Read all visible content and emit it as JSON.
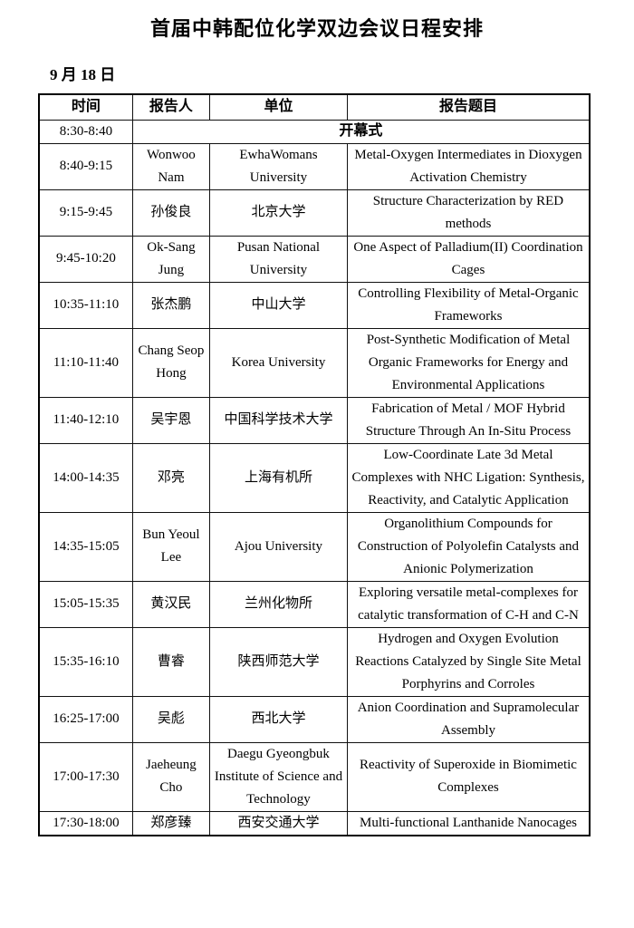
{
  "page": {
    "title": "首届中韩配位化学双边会议日程安排",
    "date_label": "9 月 18 日"
  },
  "table": {
    "headers": [
      "时间",
      "报告人",
      "单位",
      "报告题目"
    ],
    "opening_row": {
      "time": "8:30-8:40",
      "label": "开幕式"
    },
    "rows": [
      {
        "time": "8:40-9:15",
        "speaker": "Wonwoo Nam",
        "affiliation": "EwhaWomans University",
        "title": "Metal-Oxygen Intermediates in Dioxygen Activation Chemistry"
      },
      {
        "time": "9:15-9:45",
        "speaker": "孙俊良",
        "affiliation": "北京大学",
        "title": "Structure Characterization by RED methods"
      },
      {
        "time": "9:45-10:20",
        "speaker": "Ok-Sang Jung",
        "affiliation": "Pusan National University",
        "title": "One Aspect of Palladium(II) Coordination Cages"
      },
      {
        "time": "10:35-11:10",
        "speaker": "张杰鹏",
        "affiliation": "中山大学",
        "title": "Controlling Flexibility of Metal-Organic Frameworks"
      },
      {
        "time": "11:10-11:40",
        "speaker": "Chang Seop Hong",
        "affiliation": "Korea University",
        "title": "Post-Synthetic Modification of Metal Organic Frameworks for Energy and Environmental Applications"
      },
      {
        "time": "11:40-12:10",
        "speaker": "吴宇恩",
        "affiliation": "中国科学技术大学",
        "title": "Fabrication of Metal / MOF Hybrid Structure Through An In-Situ Process"
      },
      {
        "time": "14:00-14:35",
        "speaker": "邓亮",
        "affiliation": "上海有机所",
        "title": "Low-Coordinate Late 3d Metal Complexes with NHC Ligation: Synthesis, Reactivity, and Catalytic Application"
      },
      {
        "time": "14:35-15:05",
        "speaker": "Bun Yeoul Lee",
        "affiliation": "Ajou University",
        "title": "Organolithium Compounds for Construction of Polyolefin Catalysts and Anionic Polymerization"
      },
      {
        "time": "15:05-15:35",
        "speaker": "黄汉民",
        "affiliation": "兰州化物所",
        "title": "Exploring versatile metal-complexes for catalytic transformation of C-H and C-N"
      },
      {
        "time": "15:35-16:10",
        "speaker": "曹睿",
        "affiliation": "陕西师范大学",
        "title": "Hydrogen and Oxygen Evolution Reactions Catalyzed by Single Site Metal Porphyrins and Corroles"
      },
      {
        "time": "16:25-17:00",
        "speaker": "吴彪",
        "affiliation": "西北大学",
        "title": "Anion Coordination and Supramolecular Assembly"
      },
      {
        "time": "17:00-17:30",
        "speaker": "Jaeheung Cho",
        "affiliation": "Daegu Gyeongbuk Institute of Science and Technology",
        "title": "Reactivity of Superoxide in Biomimetic Complexes"
      },
      {
        "time": "17:30-18:00",
        "speaker": "郑彦臻",
        "affiliation": "西安交通大学",
        "title": "Multi-functional Lanthanide Nanocages"
      }
    ]
  }
}
